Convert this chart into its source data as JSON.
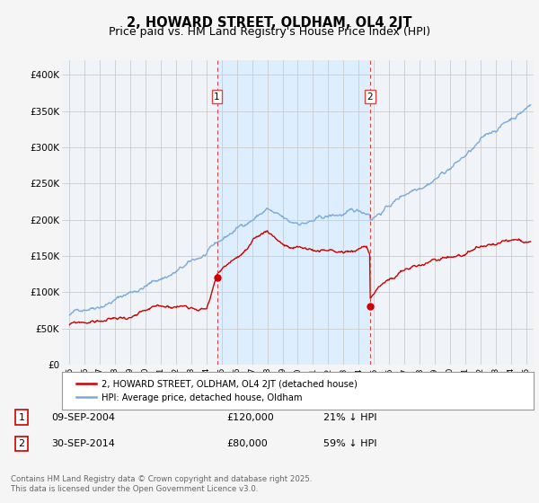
{
  "title": "2, HOWARD STREET, OLDHAM, OL4 2JT",
  "subtitle": "Price paid vs. HM Land Registry's House Price Index (HPI)",
  "ylabel_ticks": [
    "£0",
    "£50K",
    "£100K",
    "£150K",
    "£200K",
    "£250K",
    "£300K",
    "£350K",
    "£400K"
  ],
  "ytick_vals": [
    0,
    50000,
    100000,
    150000,
    200000,
    250000,
    300000,
    350000,
    400000
  ],
  "ylim": [
    0,
    420000
  ],
  "xlim_start": 1994.5,
  "xlim_end": 2025.5,
  "marker1_x": 2004.69,
  "marker1_y": 120000,
  "marker2_x": 2014.75,
  "marker2_y": 80000,
  "hpi_color": "#7aabdb",
  "price_color": "#cc0000",
  "shade_color": "#ddeeff",
  "marker_vline_color": "#dd4444",
  "background_color": "#f5f5f5",
  "plot_bg": "#f0f4f8",
  "grid_color": "#cccccc",
  "legend_label_price": "2, HOWARD STREET, OLDHAM, OL4 2JT (detached house)",
  "legend_label_hpi": "HPI: Average price, detached house, Oldham",
  "table_rows": [
    {
      "num": "1",
      "date": "09-SEP-2004",
      "price": "£120,000",
      "hpi": "21% ↓ HPI"
    },
    {
      "num": "2",
      "date": "30-SEP-2014",
      "price": "£80,000",
      "hpi": "59% ↓ HPI"
    }
  ],
  "footer": "Contains HM Land Registry data © Crown copyright and database right 2025.\nThis data is licensed under the Open Government Licence v3.0.",
  "title_fontsize": 10.5,
  "subtitle_fontsize": 9
}
